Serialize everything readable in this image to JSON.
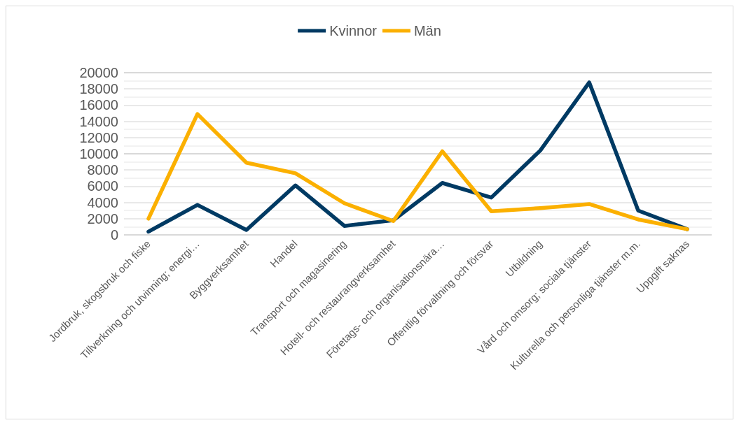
{
  "chart_data": {
    "type": "line",
    "categories": [
      "Jordbruk, skogsbruk och fiske",
      "Tillverkning och utvinning; energi…",
      "Byggverksamhet",
      "Handel",
      "Transport och magasinering",
      "Hotell- och restaurangverksamhet",
      "Företags- och organisationsnära…",
      "Offentlig förvaltning och försvar",
      "Utbildning",
      "Vård och omsorg; sociala tjänster",
      "Kulturella och personliga tjänster m.m.",
      "Uppgift saknas"
    ],
    "series": [
      {
        "name": "Kvinnor",
        "color": "#003a63",
        "values": [
          400,
          3700,
          600,
          6100,
          1100,
          1800,
          6400,
          4600,
          10400,
          18800,
          3000,
          700
        ]
      },
      {
        "name": "Män",
        "color": "#fbb000",
        "values": [
          2000,
          14900,
          8900,
          7600,
          3900,
          1700,
          10300,
          2900,
          3300,
          3800,
          1900,
          700
        ]
      }
    ],
    "ylim": [
      0,
      20000
    ],
    "yticks": [
      0,
      2000,
      4000,
      6000,
      8000,
      10000,
      12000,
      14000,
      16000,
      18000,
      20000
    ],
    "grid": "y",
    "legend": "top",
    "marker": "none",
    "line_style": "solid"
  }
}
